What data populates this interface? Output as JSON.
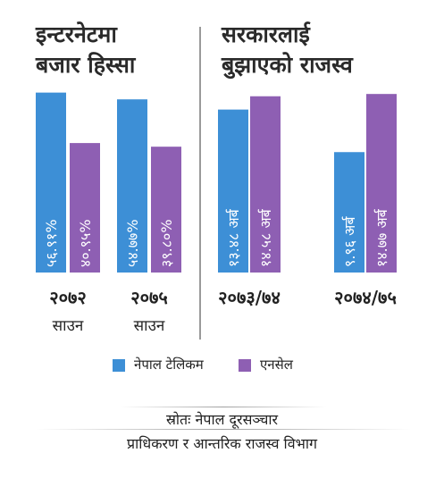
{
  "titles": {
    "left_line1": "इन्टरनेटमा",
    "left_line2": "बजार हिस्सा",
    "right_line1": "सरकारलाई",
    "right_line2": "बुझाएको राजस्व"
  },
  "colors": {
    "ntc": "#3d8fd6",
    "ncell": "#8e5fb3"
  },
  "legend": [
    {
      "label": "नेपाल टेलिकम",
      "color": "#3d8fd6"
    },
    {
      "label": "एनसेल",
      "color": "#8e5fb3"
    }
  ],
  "source": {
    "line1": "स्रोतः नेपाल दूरसञ्चार",
    "line2": "प्राधिकरण र आन्तरिक राजस्व विभाग"
  },
  "chart_data": [
    {
      "type": "bar",
      "title": "इन्टरनेटमा बजार हिस्सा",
      "categories": [
        "२०७२ साउन",
        "२०७५ साउन"
      ],
      "category_labels": [
        {
          "year": "२०७२",
          "month": "साउन"
        },
        {
          "year": "२०७५",
          "month": "साउन"
        }
      ],
      "series": [
        {
          "name": "नेपाल टेलिकम",
          "values": [
            56.91,
            54.77
          ],
          "labels": [
            "५६.९१%",
            "५४.७७%"
          ]
        },
        {
          "name": "एनसेल",
          "values": [
            40.95,
            39.8
          ],
          "labels": [
            "४०.९५%",
            "३९.८०%"
          ]
        }
      ],
      "ylim": [
        0,
        65
      ]
    },
    {
      "type": "bar",
      "title": "सरकारलाई बुझाएको राजस्व",
      "categories": [
        "२०७३/७४",
        "२०७४/७५"
      ],
      "series": [
        {
          "name": "नेपाल टेलिकम",
          "values": [
            13.48,
            9.96
          ],
          "labels": [
            "१३.४८ अर्ब",
            "९.९६ अर्ब"
          ]
        },
        {
          "name": "एनसेल",
          "values": [
            14.58,
            14.77
          ],
          "labels": [
            "१४.५८ अर्ब",
            "१४.७७ अर्ब"
          ]
        }
      ],
      "ylim": [
        0,
        17
      ]
    }
  ]
}
